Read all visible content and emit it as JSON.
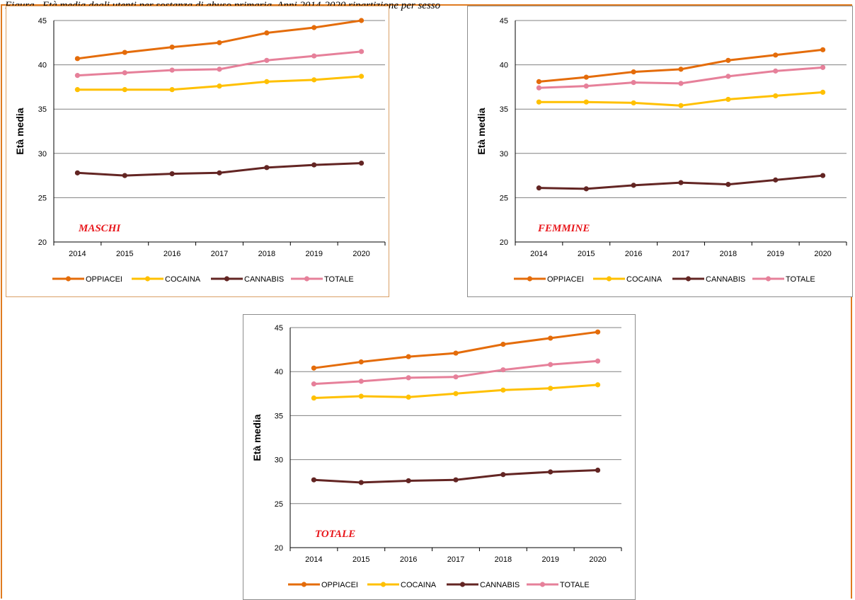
{
  "caption": "Figura . Età media degli utenti per sostanza di abuso primaria. Anni 2014-2020 ripartizione per sesso",
  "chart_data": [
    {
      "type": "line",
      "annotation": "MASCHI",
      "ylabel": "Età media",
      "xlabel": "",
      "ylim": [
        20,
        45
      ],
      "yticks": [
        20,
        25,
        30,
        35,
        40,
        45
      ],
      "categories": [
        "2014",
        "2015",
        "2016",
        "2017",
        "2018",
        "2019",
        "2020"
      ],
      "grid": true,
      "legend_position": "bottom",
      "series": [
        {
          "name": "OPPIACEI",
          "color": "#e46c0a",
          "values": [
            40.7,
            41.4,
            42.0,
            42.5,
            43.6,
            44.2,
            45.0
          ]
        },
        {
          "name": "COCAINA",
          "color": "#ffc000",
          "values": [
            37.2,
            37.2,
            37.2,
            37.6,
            38.1,
            38.3,
            38.7
          ]
        },
        {
          "name": "CANNABIS",
          "color": "#632523",
          "values": [
            27.8,
            27.5,
            27.7,
            27.8,
            28.4,
            28.7,
            28.9
          ]
        },
        {
          "name": "TOTALE",
          "color": "#e6809a",
          "values": [
            38.8,
            39.1,
            39.4,
            39.5,
            40.5,
            41.0,
            41.5
          ]
        }
      ]
    },
    {
      "type": "line",
      "annotation": "FEMMINE",
      "ylabel": "Età media",
      "xlabel": "",
      "ylim": [
        20,
        45
      ],
      "yticks": [
        20,
        25,
        30,
        35,
        40,
        45
      ],
      "categories": [
        "2014",
        "2015",
        "2016",
        "2017",
        "2018",
        "2019",
        "2020"
      ],
      "grid": true,
      "legend_position": "bottom",
      "series": [
        {
          "name": "OPPIACEI",
          "color": "#e46c0a",
          "values": [
            38.1,
            38.6,
            39.2,
            39.5,
            40.5,
            41.1,
            41.7
          ]
        },
        {
          "name": "COCAINA",
          "color": "#ffc000",
          "values": [
            35.8,
            35.8,
            35.7,
            35.4,
            36.1,
            36.5,
            36.9
          ]
        },
        {
          "name": "CANNABIS",
          "color": "#632523",
          "values": [
            26.1,
            26.0,
            26.4,
            26.7,
            26.5,
            27.0,
            27.5
          ]
        },
        {
          "name": "TOTALE",
          "color": "#e6809a",
          "values": [
            37.4,
            37.6,
            38.0,
            37.9,
            38.7,
            39.3,
            39.7
          ]
        }
      ]
    },
    {
      "type": "line",
      "annotation": "TOTALE",
      "ylabel": "Età media",
      "xlabel": "",
      "ylim": [
        20,
        45
      ],
      "yticks": [
        20,
        25,
        30,
        35,
        40,
        45
      ],
      "categories": [
        "2014",
        "2015",
        "2016",
        "2017",
        "2018",
        "2019",
        "2020"
      ],
      "grid": true,
      "legend_position": "bottom",
      "series": [
        {
          "name": "OPPIACEI",
          "color": "#e46c0a",
          "values": [
            40.4,
            41.1,
            41.7,
            42.1,
            43.1,
            43.8,
            44.5
          ]
        },
        {
          "name": "COCAINA",
          "color": "#ffc000",
          "values": [
            37.0,
            37.2,
            37.1,
            37.5,
            37.9,
            38.1,
            38.5
          ]
        },
        {
          "name": "CANNABIS",
          "color": "#632523",
          "values": [
            27.7,
            27.4,
            27.6,
            27.7,
            28.3,
            28.6,
            28.8
          ]
        },
        {
          "name": "TOTALE",
          "color": "#e6809a",
          "values": [
            38.6,
            38.9,
            39.3,
            39.4,
            40.2,
            40.8,
            41.2
          ]
        }
      ]
    }
  ]
}
